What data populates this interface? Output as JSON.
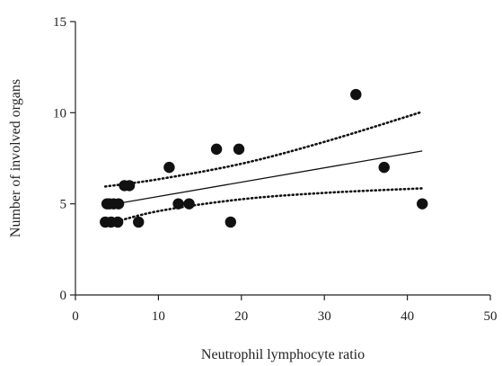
{
  "chart_data": {
    "type": "scatter",
    "title": "",
    "xlabel": "Neutrophil lymphocyte ratio",
    "ylabel": "Number of involved organs",
    "xlim": [
      0,
      50
    ],
    "ylim": [
      0,
      15
    ],
    "x_ticks": [
      0,
      10,
      20,
      30,
      40,
      50
    ],
    "y_ticks": [
      0,
      5,
      10,
      15
    ],
    "grid": false,
    "legend": "none",
    "points": {
      "x": [
        3.6,
        3.8,
        4.1,
        4.3,
        4.6,
        5.1,
        5.2,
        5.9,
        6.5,
        7.6,
        11.3,
        12.4,
        13.7,
        17.0,
        18.7,
        19.7,
        33.8,
        37.2,
        41.8
      ],
      "y": [
        4,
        5,
        5,
        4,
        5,
        4,
        5,
        6,
        6,
        4,
        7,
        5,
        5,
        8,
        4,
        8,
        11,
        7,
        5
      ]
    },
    "regression_line": {
      "x": [
        3.6,
        41.8
      ],
      "y": [
        4.9,
        7.9
      ]
    },
    "confidence_upper": {
      "x": [
        3.6,
        10,
        20,
        30,
        41.8
      ],
      "y": [
        5.95,
        6.35,
        7.2,
        8.4,
        10.05
      ]
    },
    "confidence_lower": {
      "x": [
        3.6,
        10,
        20,
        30,
        41.8
      ],
      "y": [
        3.85,
        4.6,
        5.25,
        5.6,
        5.85
      ]
    },
    "colors": {
      "points": "#111111",
      "lines": "#111111",
      "axes": "#222222"
    }
  }
}
